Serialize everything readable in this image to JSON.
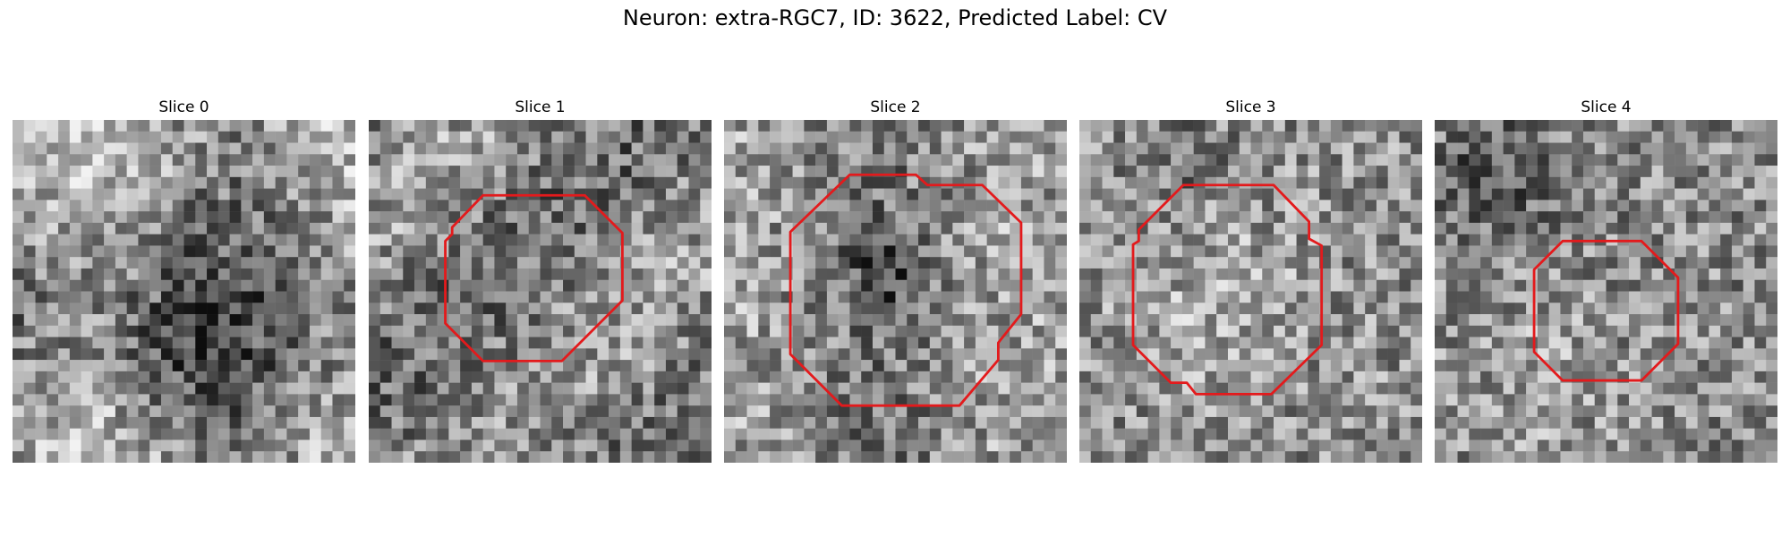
{
  "figure": {
    "title": "Neuron: extra-RGC7, ID: 3622, Predicted Label: CV"
  },
  "slices": [
    {
      "label": "Slice 0",
      "has_contour": false
    },
    {
      "label": "Slice 1",
      "has_contour": true
    },
    {
      "label": "Slice 2",
      "has_contour": true
    },
    {
      "label": "Slice 3",
      "has_contour": true
    },
    {
      "label": "Slice 4",
      "has_contour": true
    }
  ],
  "colors": {
    "contour": "#e31a1c",
    "background": "#ffffff"
  },
  "image": {
    "grid_resolution": 30,
    "colormap": "gray"
  }
}
